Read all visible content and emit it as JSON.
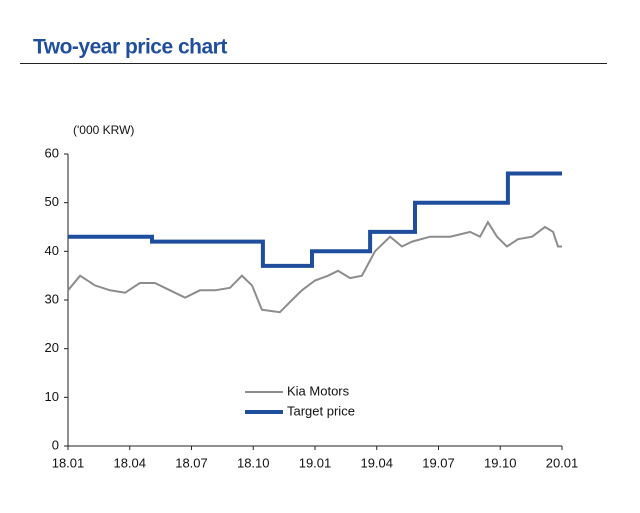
{
  "chart_data": {
    "type": "line",
    "title": "Two-year price chart",
    "unit_label": "('000 KRW)",
    "xlim": [
      2018,
      2020
    ],
    "xticks": [
      {
        "value": 2018.0,
        "label": "18.01"
      },
      {
        "value": 2018.25,
        "label": "18.04"
      },
      {
        "value": 2018.5,
        "label": "18.07"
      },
      {
        "value": 2018.75,
        "label": "18.10"
      },
      {
        "value": 2019.0,
        "label": "19.01"
      },
      {
        "value": 2019.25,
        "label": "19.04"
      },
      {
        "value": 2019.5,
        "label": "19.07"
      },
      {
        "value": 2019.75,
        "label": "19.10"
      },
      {
        "value": 2020.0,
        "label": "20.01"
      }
    ],
    "ylim": [
      0,
      60
    ],
    "yticks": [
      0,
      10,
      20,
      30,
      40,
      50,
      60
    ],
    "legend": "lower-center",
    "series": [
      {
        "name": "Kia Motors",
        "color": "#8c8c8c",
        "x": [
          2018.0,
          2018.049,
          2018.109,
          2018.17,
          2018.231,
          2018.291,
          2018.352,
          2018.413,
          2018.474,
          2018.534,
          2018.595,
          2018.656,
          2018.704,
          2018.745,
          2018.785,
          2018.858,
          2018.907,
          2018.947,
          2019.0,
          2019.053,
          2019.093,
          2019.142,
          2019.19,
          2019.243,
          2019.304,
          2019.352,
          2019.393,
          2019.466,
          2019.547,
          2019.628,
          2019.668,
          2019.7,
          2019.737,
          2019.777,
          2019.822,
          2019.879,
          2019.931,
          2019.964,
          2019.984,
          2020.0
        ],
        "values": [
          32,
          35,
          33,
          32,
          31.5,
          33.5,
          33.5,
          32,
          30.5,
          32,
          32,
          32.5,
          35,
          33,
          28,
          27.5,
          30,
          32,
          34,
          35,
          36,
          34.5,
          35,
          40,
          43,
          41,
          42,
          43,
          43,
          44,
          43,
          46,
          43,
          41,
          42.5,
          43,
          45,
          44,
          41,
          41
        ]
      },
      {
        "name": "Target price",
        "color": "#1f4e9c",
        "x": [
          2018.0,
          2018.34,
          2018.34,
          2018.789,
          2018.789,
          2018.988,
          2018.988,
          2019.223,
          2019.223,
          2019.405,
          2019.405,
          2019.781,
          2019.781,
          2020.0
        ],
        "values": [
          43,
          43,
          42,
          42,
          37,
          37,
          40,
          40,
          44,
          44,
          50,
          50,
          56,
          56
        ]
      }
    ]
  }
}
